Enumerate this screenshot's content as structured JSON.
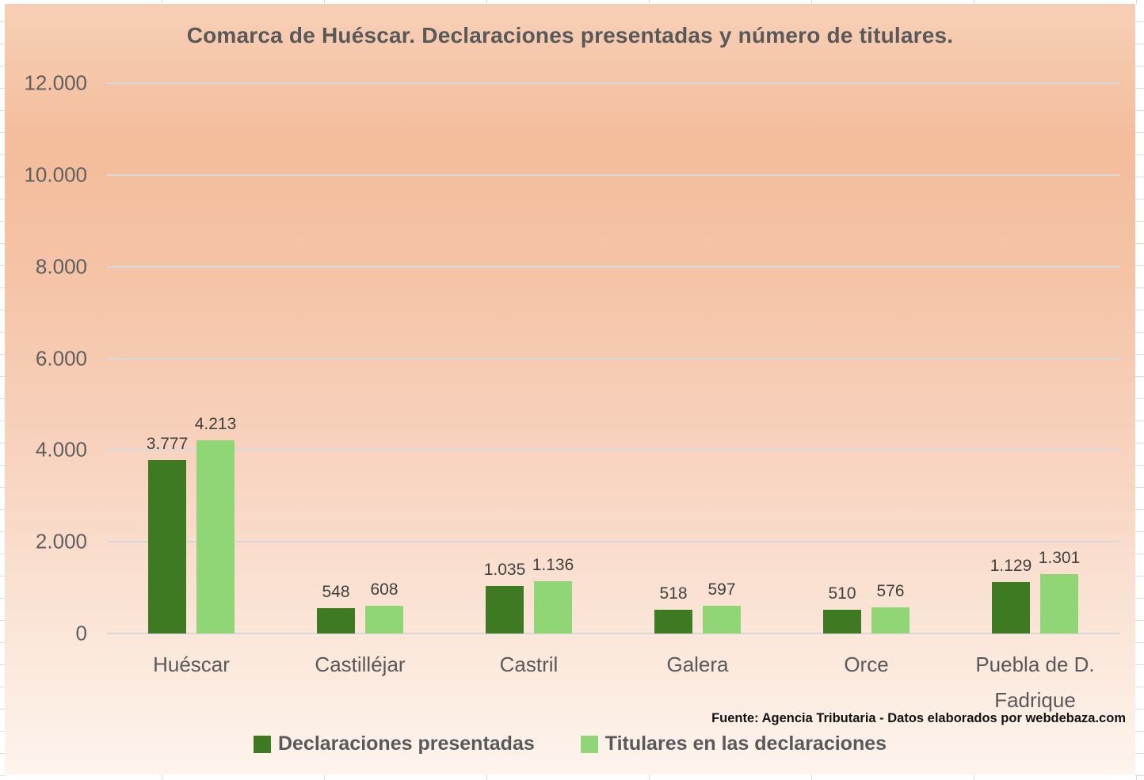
{
  "chart": {
    "background_gradient": [
      "#f4bd9c",
      "#fdf4ed"
    ],
    "gridline_color": "#d5dade",
    "title_color": "#595959",
    "source_note": "Fuente: Agencia Tributaria - Datos elaborados por webdebaza.com"
  },
  "chart_data": {
    "type": "bar",
    "title": "Comarca de Huéscar. Declaraciones presentadas y número de titulares.",
    "categories": [
      "Huéscar",
      "Castilléjar",
      "Castril",
      "Galera",
      "Orce",
      "Puebla de D. Fadrique"
    ],
    "series": [
      {
        "name": "Declaraciones presentadas",
        "color": "#3E7A22",
        "values": [
          3777,
          548,
          1035,
          518,
          510,
          1129
        ],
        "labels": [
          "3.777",
          "548",
          "1.035",
          "518",
          "510",
          "1.129"
        ]
      },
      {
        "name": "Titulares en las declaraciones",
        "color": "#90D677",
        "values": [
          4213,
          608,
          1136,
          597,
          576,
          1301
        ],
        "labels": [
          "4.213",
          "608",
          "1.136",
          "597",
          "576",
          "1.301"
        ]
      }
    ],
    "xlabel": "",
    "ylabel": "",
    "ylim": [
      0,
      12000
    ],
    "ytick_interval": 2000,
    "ytick_labels": [
      "0",
      "2.000",
      "4.000",
      "6.000",
      "8.000",
      "10.000",
      "12.000"
    ],
    "grid": true,
    "legend_position": "bottom"
  }
}
